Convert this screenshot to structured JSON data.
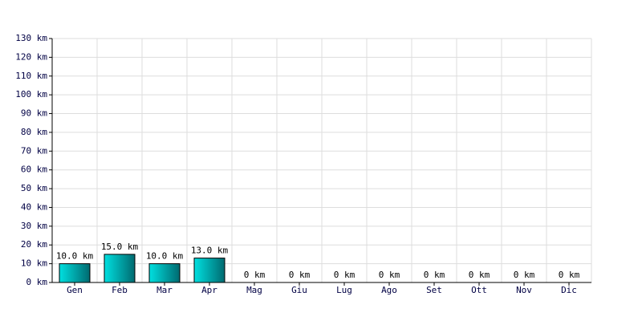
{
  "chart_data": {
    "type": "bar",
    "categories": [
      "Gen",
      "Feb",
      "Mar",
      "Apr",
      "Mag",
      "Giu",
      "Lug",
      "Ago",
      "Set",
      "Ott",
      "Nov",
      "Dic"
    ],
    "values": [
      10,
      15,
      10,
      13,
      0,
      0,
      0,
      0,
      0,
      0,
      0,
      0
    ],
    "value_labels": [
      "10.0 km",
      "15.0 km",
      "10.0 km",
      "13.0 km",
      "0 km",
      "0 km",
      "0 km",
      "0 km",
      "0 km",
      "0 km",
      "0 km",
      "0 km"
    ],
    "color": "#00e0e0",
    "ylim": [
      0,
      130
    ],
    "yticks": [
      {
        "value": 0,
        "label": "0 km"
      },
      {
        "value": 10,
        "label": "10 km"
      },
      {
        "value": 20,
        "label": "20 km"
      },
      {
        "value": 30,
        "label": "30 km"
      },
      {
        "value": 40,
        "label": "40 km"
      },
      {
        "value": 50,
        "label": "50 km"
      },
      {
        "value": 60,
        "label": "60 km"
      },
      {
        "value": 70,
        "label": "70 km"
      },
      {
        "value": 80,
        "label": "80 km"
      },
      {
        "value": 90,
        "label": "90 km"
      },
      {
        "value": 100,
        "label": "100 km"
      },
      {
        "value": 110,
        "label": "110 km"
      },
      {
        "value": 120,
        "label": "120 km"
      },
      {
        "value": 130,
        "label": "130 km"
      }
    ],
    "grid": true
  }
}
